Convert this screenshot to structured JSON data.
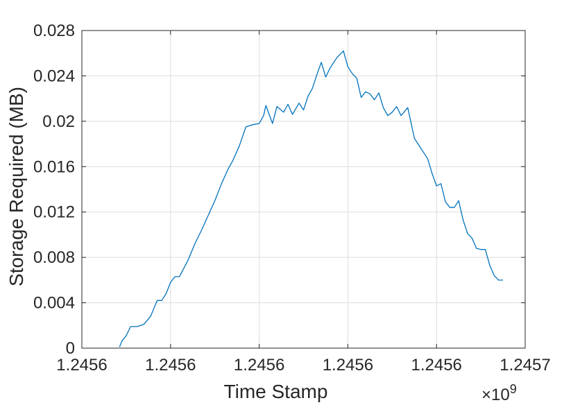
{
  "chart_data": {
    "type": "line",
    "title": "",
    "xlabel": "Time Stamp",
    "ylabel": "Storage Required (MB)",
    "x_exponent_label": {
      "times": "×10",
      "power": "9"
    },
    "x_tick_labels": [
      "1.2456",
      "1.2456",
      "1.2456",
      "1.2456",
      "1.2456",
      "1.2457"
    ],
    "y_tick_labels": [
      "0",
      "0.004",
      "0.008",
      "0.012",
      "0.016",
      "0.02",
      "0.024",
      "0.028"
    ],
    "y_ticks": [
      0,
      0.004,
      0.008,
      0.012,
      0.016,
      0.02,
      0.024,
      0.028
    ],
    "ylim": [
      0,
      0.028
    ],
    "x_tick_count": 6,
    "grid": true,
    "colors": {
      "line": "#0072BD",
      "grid": "#dcdcdc",
      "axis": "#262626"
    },
    "series": [
      {
        "x_fraction_of_axis": [
          0.085,
          0.09,
          0.1,
          0.11,
          0.125,
          0.14,
          0.155,
          0.17,
          0.18,
          0.19,
          0.2,
          0.21,
          0.22,
          0.24,
          0.255,
          0.27,
          0.285,
          0.3,
          0.315,
          0.33,
          0.34,
          0.355,
          0.37,
          0.385,
          0.4,
          0.41,
          0.415,
          0.43,
          0.44,
          0.455,
          0.465,
          0.475,
          0.49,
          0.5,
          0.51,
          0.52,
          0.53,
          0.54,
          0.55,
          0.56,
          0.575,
          0.59,
          0.6,
          0.61,
          0.62,
          0.63,
          0.64,
          0.65,
          0.66,
          0.67,
          0.68,
          0.69,
          0.7,
          0.71,
          0.72,
          0.735,
          0.75,
          0.765,
          0.78,
          0.79,
          0.8,
          0.81,
          0.82,
          0.83,
          0.84,
          0.85,
          0.86,
          0.87,
          0.88,
          0.89,
          0.9,
          0.91,
          0.92,
          0.93,
          0.94,
          0.945,
          0.95
        ],
        "y": [
          0.0001,
          0.0006,
          0.0011,
          0.0019,
          0.0019,
          0.0021,
          0.0028,
          0.0042,
          0.0042,
          0.0048,
          0.0058,
          0.0063,
          0.0063,
          0.0078,
          0.0092,
          0.0104,
          0.0117,
          0.013,
          0.0145,
          0.0158,
          0.0165,
          0.0178,
          0.0195,
          0.0197,
          0.0198,
          0.0205,
          0.0214,
          0.0198,
          0.0213,
          0.0208,
          0.0215,
          0.0206,
          0.0216,
          0.021,
          0.0222,
          0.0229,
          0.0241,
          0.0252,
          0.0239,
          0.0247,
          0.0256,
          0.0262,
          0.0248,
          0.0242,
          0.0238,
          0.0221,
          0.0226,
          0.0224,
          0.0219,
          0.0225,
          0.0212,
          0.0205,
          0.0208,
          0.0213,
          0.0205,
          0.0212,
          0.0185,
          0.0176,
          0.0167,
          0.0154,
          0.0143,
          0.0145,
          0.0129,
          0.0124,
          0.0124,
          0.013,
          0.0113,
          0.0101,
          0.0097,
          0.0088,
          0.0087,
          0.0087,
          0.0073,
          0.0064,
          0.006,
          0.006,
          0.006
        ]
      }
    ]
  }
}
